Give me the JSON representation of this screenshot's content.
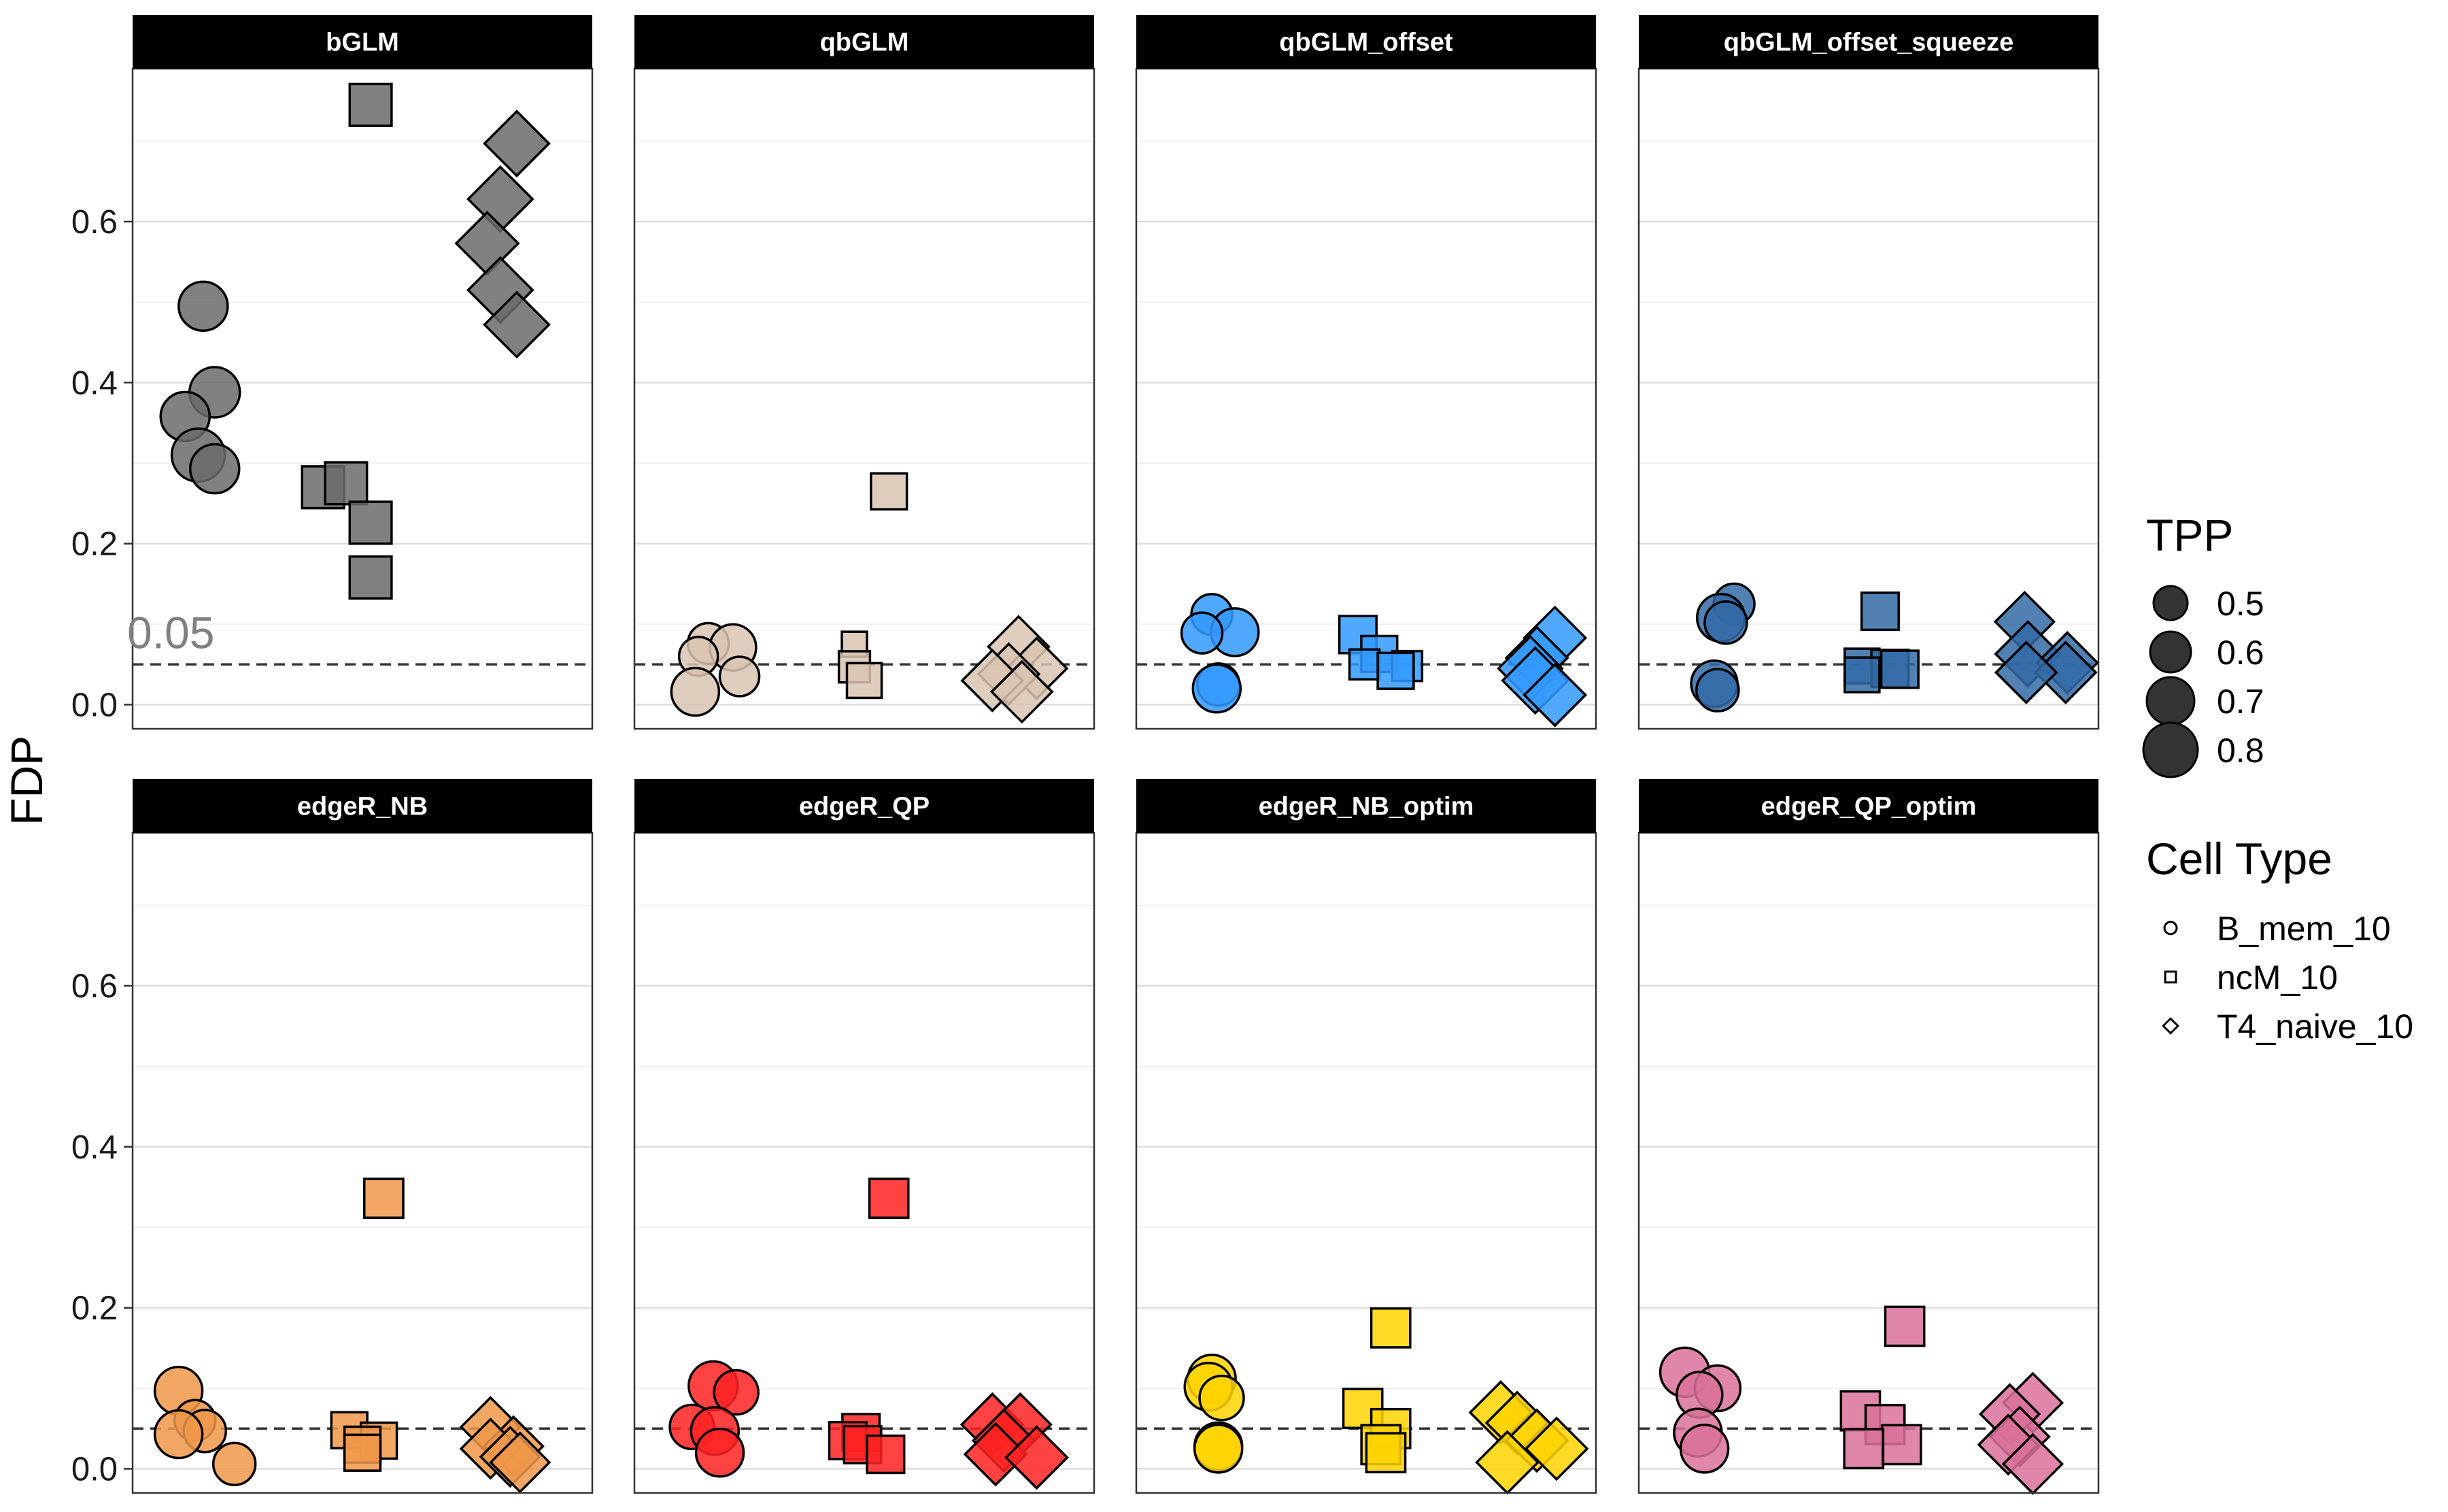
{
  "chart_data": {
    "type": "scatter",
    "ylabel": "FDP",
    "xlabel": "",
    "ylim": [
      -0.03,
      0.79
    ],
    "yticks": [
      "0.0",
      "0.2",
      "0.4",
      "0.6"
    ],
    "ytick_values": [
      0.0,
      0.2,
      0.4,
      0.6
    ],
    "reference_line": {
      "y": 0.05,
      "style": "dashed",
      "label": "0.05"
    },
    "grid": true,
    "legend_position": "right",
    "legend_size": {
      "title": "TPP",
      "values": [
        "0.5",
        "0.6",
        "0.7",
        "0.8"
      ]
    },
    "legend_shape": {
      "title": "Cell Type",
      "values": [
        "B_mem_10",
        "ncM_10",
        "T4_naive_10"
      ]
    },
    "shapes": {
      "B_mem_10": "circle",
      "ncM_10": "square",
      "T4_naive_10": "diamond"
    },
    "panels": [
      {
        "name": "bGLM",
        "color": "#6b6b6b",
        "points": [
          {
            "cell": "B_mem_10",
            "x": 1.03,
            "y": 0.495,
            "tpp": 0.72
          },
          {
            "cell": "B_mem_10",
            "x": 1.1,
            "y": 0.388,
            "tpp": 0.74
          },
          {
            "cell": "B_mem_10",
            "x": 0.92,
            "y": 0.358,
            "tpp": 0.72
          },
          {
            "cell": "B_mem_10",
            "x": 1.0,
            "y": 0.31,
            "tpp": 0.78
          },
          {
            "cell": "B_mem_10",
            "x": 1.1,
            "y": 0.293,
            "tpp": 0.72
          },
          {
            "cell": "ncM_10",
            "x": 2.05,
            "y": 0.745,
            "tpp": 0.7
          },
          {
            "cell": "ncM_10",
            "x": 1.76,
            "y": 0.27,
            "tpp": 0.7
          },
          {
            "cell": "ncM_10",
            "x": 1.9,
            "y": 0.275,
            "tpp": 0.7
          },
          {
            "cell": "ncM_10",
            "x": 2.05,
            "y": 0.226,
            "tpp": 0.7
          },
          {
            "cell": "ncM_10",
            "x": 2.05,
            "y": 0.158,
            "tpp": 0.7
          },
          {
            "cell": "T4_naive_10",
            "x": 2.94,
            "y": 0.697,
            "tpp": 0.79
          },
          {
            "cell": "T4_naive_10",
            "x": 2.84,
            "y": 0.628,
            "tpp": 0.79
          },
          {
            "cell": "T4_naive_10",
            "x": 2.76,
            "y": 0.573,
            "tpp": 0.76
          },
          {
            "cell": "T4_naive_10",
            "x": 2.84,
            "y": 0.515,
            "tpp": 0.79
          },
          {
            "cell": "T4_naive_10",
            "x": 2.94,
            "y": 0.472,
            "tpp": 0.79
          }
        ]
      },
      {
        "name": "qbGLM",
        "color": "#d9c4b1",
        "points": [
          {
            "cell": "B_mem_10",
            "x": 1.05,
            "y": 0.076,
            "tpp": 0.6
          },
          {
            "cell": "B_mem_10",
            "x": 1.2,
            "y": 0.071,
            "tpp": 0.68
          },
          {
            "cell": "B_mem_10",
            "x": 0.99,
            "y": 0.06,
            "tpp": 0.57
          },
          {
            "cell": "B_mem_10",
            "x": 1.24,
            "y": 0.035,
            "tpp": 0.58
          },
          {
            "cell": "B_mem_10",
            "x": 0.97,
            "y": 0.016,
            "tpp": 0.7
          },
          {
            "cell": "ncM_10",
            "x": 2.15,
            "y": 0.265,
            "tpp": 0.6
          },
          {
            "cell": "ncM_10",
            "x": 1.94,
            "y": 0.075,
            "tpp": 0.42
          },
          {
            "cell": "ncM_10",
            "x": 1.94,
            "y": 0.047,
            "tpp": 0.52
          },
          {
            "cell": "ncM_10",
            "x": 2.0,
            "y": 0.03,
            "tpp": 0.58
          },
          {
            "cell": "T4_naive_10",
            "x": 2.94,
            "y": 0.072,
            "tpp": 0.74
          },
          {
            "cell": "T4_naive_10",
            "x": 3.05,
            "y": 0.045,
            "tpp": 0.74
          },
          {
            "cell": "T4_naive_10",
            "x": 2.88,
            "y": 0.038,
            "tpp": 0.74
          },
          {
            "cell": "T4_naive_10",
            "x": 2.78,
            "y": 0.03,
            "tpp": 0.74
          },
          {
            "cell": "T4_naive_10",
            "x": 2.96,
            "y": 0.016,
            "tpp": 0.74
          }
        ]
      },
      {
        "name": "qbGLM_offset",
        "color": "#3399ff",
        "points": [
          {
            "cell": "B_mem_10",
            "x": 1.06,
            "y": 0.112,
            "tpp": 0.6
          },
          {
            "cell": "B_mem_10",
            "x": 1.2,
            "y": 0.09,
            "tpp": 0.7
          },
          {
            "cell": "B_mem_10",
            "x": 1.0,
            "y": 0.089,
            "tpp": 0.6
          },
          {
            "cell": "B_mem_10",
            "x": 1.1,
            "y": 0.025,
            "tpp": 0.62
          },
          {
            "cell": "B_mem_10",
            "x": 1.09,
            "y": 0.02,
            "tpp": 0.7
          },
          {
            "cell": "ncM_10",
            "x": 1.95,
            "y": 0.087,
            "tpp": 0.62
          },
          {
            "cell": "ncM_10",
            "x": 2.08,
            "y": 0.063,
            "tpp": 0.6
          },
          {
            "cell": "ncM_10",
            "x": 2.25,
            "y": 0.048,
            "tpp": 0.5
          },
          {
            "cell": "ncM_10",
            "x": 1.99,
            "y": 0.05,
            "tpp": 0.5
          },
          {
            "cell": "ncM_10",
            "x": 2.18,
            "y": 0.042,
            "tpp": 0.6
          },
          {
            "cell": "T4_naive_10",
            "x": 3.15,
            "y": 0.083,
            "tpp": 0.75
          },
          {
            "cell": "T4_naive_10",
            "x": 3.04,
            "y": 0.058,
            "tpp": 0.75
          },
          {
            "cell": "T4_naive_10",
            "x": 3.0,
            "y": 0.045,
            "tpp": 0.78
          },
          {
            "cell": "T4_naive_10",
            "x": 3.03,
            "y": 0.03,
            "tpp": 0.8
          },
          {
            "cell": "T4_naive_10",
            "x": 3.15,
            "y": 0.012,
            "tpp": 0.75
          }
        ]
      },
      {
        "name": "qbGLM_offset_squeeze",
        "color": "#336aa6",
        "points": [
          {
            "cell": "B_mem_10",
            "x": 1.18,
            "y": 0.125,
            "tpp": 0.6
          },
          {
            "cell": "B_mem_10",
            "x": 1.1,
            "y": 0.108,
            "tpp": 0.7
          },
          {
            "cell": "B_mem_10",
            "x": 1.13,
            "y": 0.102,
            "tpp": 0.62
          },
          {
            "cell": "B_mem_10",
            "x": 1.06,
            "y": 0.026,
            "tpp": 0.68
          },
          {
            "cell": "B_mem_10",
            "x": 1.08,
            "y": 0.018,
            "tpp": 0.62
          },
          {
            "cell": "ncM_10",
            "x": 2.07,
            "y": 0.116,
            "tpp": 0.62
          },
          {
            "cell": "ncM_10",
            "x": 1.96,
            "y": 0.048,
            "tpp": 0.58
          },
          {
            "cell": "ncM_10",
            "x": 2.13,
            "y": 0.045,
            "tpp": 0.62
          },
          {
            "cell": "ncM_10",
            "x": 2.19,
            "y": 0.044,
            "tpp": 0.62
          },
          {
            "cell": "ncM_10",
            "x": 1.96,
            "y": 0.037,
            "tpp": 0.58
          },
          {
            "cell": "T4_naive_10",
            "x": 2.95,
            "y": 0.103,
            "tpp": 0.72
          },
          {
            "cell": "T4_naive_10",
            "x": 2.97,
            "y": 0.063,
            "tpp": 0.79
          },
          {
            "cell": "T4_naive_10",
            "x": 3.21,
            "y": 0.052,
            "tpp": 0.74
          },
          {
            "cell": "T4_naive_10",
            "x": 3.2,
            "y": 0.04,
            "tpp": 0.74
          },
          {
            "cell": "T4_naive_10",
            "x": 2.96,
            "y": 0.04,
            "tpp": 0.74
          }
        ]
      },
      {
        "name": "edgeR_NB",
        "color": "#f0984a",
        "points": [
          {
            "cell": "B_mem_10",
            "x": 0.88,
            "y": 0.097,
            "tpp": 0.7
          },
          {
            "cell": "B_mem_10",
            "x": 0.98,
            "y": 0.06,
            "tpp": 0.6
          },
          {
            "cell": "B_mem_10",
            "x": 1.04,
            "y": 0.047,
            "tpp": 0.62
          },
          {
            "cell": "B_mem_10",
            "x": 0.88,
            "y": 0.043,
            "tpp": 0.7
          },
          {
            "cell": "B_mem_10",
            "x": 1.22,
            "y": 0.006,
            "tpp": 0.62
          },
          {
            "cell": "ncM_10",
            "x": 2.13,
            "y": 0.336,
            "tpp": 0.65
          },
          {
            "cell": "ncM_10",
            "x": 1.92,
            "y": 0.048,
            "tpp": 0.6
          },
          {
            "cell": "ncM_10",
            "x": 2.1,
            "y": 0.035,
            "tpp": 0.6
          },
          {
            "cell": "ncM_10",
            "x": 2.0,
            "y": 0.03,
            "tpp": 0.6
          },
          {
            "cell": "ncM_10",
            "x": 2.0,
            "y": 0.02,
            "tpp": 0.6
          },
          {
            "cell": "T4_naive_10",
            "x": 2.78,
            "y": 0.052,
            "tpp": 0.72
          },
          {
            "cell": "T4_naive_10",
            "x": 2.92,
            "y": 0.028,
            "tpp": 0.72
          },
          {
            "cell": "T4_naive_10",
            "x": 2.78,
            "y": 0.025,
            "tpp": 0.72
          },
          {
            "cell": "T4_naive_10",
            "x": 2.9,
            "y": 0.015,
            "tpp": 0.72
          },
          {
            "cell": "T4_naive_10",
            "x": 2.96,
            "y": 0.008,
            "tpp": 0.72
          }
        ]
      },
      {
        "name": "edgeR_QP",
        "color": "#ff2222",
        "points": [
          {
            "cell": "B_mem_10",
            "x": 1.08,
            "y": 0.103,
            "tpp": 0.72
          },
          {
            "cell": "B_mem_10",
            "x": 1.22,
            "y": 0.095,
            "tpp": 0.65
          },
          {
            "cell": "B_mem_10",
            "x": 0.95,
            "y": 0.052,
            "tpp": 0.65
          },
          {
            "cell": "B_mem_10",
            "x": 1.09,
            "y": 0.047,
            "tpp": 0.7
          },
          {
            "cell": "B_mem_10",
            "x": 1.12,
            "y": 0.02,
            "tpp": 0.7
          },
          {
            "cell": "ncM_10",
            "x": 2.15,
            "y": 0.336,
            "tpp": 0.65
          },
          {
            "cell": "ncM_10",
            "x": 1.98,
            "y": 0.045,
            "tpp": 0.62
          },
          {
            "cell": "ncM_10",
            "x": 1.9,
            "y": 0.035,
            "tpp": 0.62
          },
          {
            "cell": "ncM_10",
            "x": 1.99,
            "y": 0.03,
            "tpp": 0.62
          },
          {
            "cell": "ncM_10",
            "x": 2.13,
            "y": 0.018,
            "tpp": 0.62
          },
          {
            "cell": "T4_naive_10",
            "x": 2.78,
            "y": 0.055,
            "tpp": 0.75
          },
          {
            "cell": "T4_naive_10",
            "x": 2.95,
            "y": 0.055,
            "tpp": 0.75
          },
          {
            "cell": "T4_naive_10",
            "x": 2.85,
            "y": 0.035,
            "tpp": 0.75
          },
          {
            "cell": "T4_naive_10",
            "x": 2.8,
            "y": 0.018,
            "tpp": 0.75
          },
          {
            "cell": "T4_naive_10",
            "x": 3.05,
            "y": 0.014,
            "tpp": 0.75
          }
        ]
      },
      {
        "name": "edgeR_NB_optim",
        "color": "#ffd400",
        "points": [
          {
            "cell": "B_mem_10",
            "x": 1.06,
            "y": 0.112,
            "tpp": 0.7
          },
          {
            "cell": "B_mem_10",
            "x": 1.04,
            "y": 0.102,
            "tpp": 0.7
          },
          {
            "cell": "B_mem_10",
            "x": 1.12,
            "y": 0.088,
            "tpp": 0.65
          },
          {
            "cell": "B_mem_10",
            "x": 1.1,
            "y": 0.028,
            "tpp": 0.7
          },
          {
            "cell": "B_mem_10",
            "x": 1.1,
            "y": 0.025,
            "tpp": 0.7
          },
          {
            "cell": "ncM_10",
            "x": 2.15,
            "y": 0.175,
            "tpp": 0.65
          },
          {
            "cell": "ncM_10",
            "x": 1.98,
            "y": 0.075,
            "tpp": 0.65
          },
          {
            "cell": "ncM_10",
            "x": 2.15,
            "y": 0.05,
            "tpp": 0.65
          },
          {
            "cell": "ncM_10",
            "x": 2.09,
            "y": 0.03,
            "tpp": 0.65
          },
          {
            "cell": "ncM_10",
            "x": 2.12,
            "y": 0.02,
            "tpp": 0.65
          },
          {
            "cell": "T4_naive_10",
            "x": 2.82,
            "y": 0.07,
            "tpp": 0.75
          },
          {
            "cell": "T4_naive_10",
            "x": 2.92,
            "y": 0.057,
            "tpp": 0.75
          },
          {
            "cell": "T4_naive_10",
            "x": 3.04,
            "y": 0.035,
            "tpp": 0.75
          },
          {
            "cell": "T4_naive_10",
            "x": 3.16,
            "y": 0.025,
            "tpp": 0.75
          },
          {
            "cell": "T4_naive_10",
            "x": 2.86,
            "y": 0.008,
            "tpp": 0.75
          }
        ]
      },
      {
        "name": "edgeR_QP_optim",
        "color": "#d9719b",
        "points": [
          {
            "cell": "B_mem_10",
            "x": 0.88,
            "y": 0.12,
            "tpp": 0.72
          },
          {
            "cell": "B_mem_10",
            "x": 1.08,
            "y": 0.1,
            "tpp": 0.67
          },
          {
            "cell": "B_mem_10",
            "x": 0.97,
            "y": 0.092,
            "tpp": 0.67
          },
          {
            "cell": "B_mem_10",
            "x": 0.96,
            "y": 0.045,
            "tpp": 0.7
          },
          {
            "cell": "B_mem_10",
            "x": 1.0,
            "y": 0.025,
            "tpp": 0.7
          },
          {
            "cell": "ncM_10",
            "x": 2.22,
            "y": 0.177,
            "tpp": 0.65
          },
          {
            "cell": "ncM_10",
            "x": 1.95,
            "y": 0.072,
            "tpp": 0.65
          },
          {
            "cell": "ncM_10",
            "x": 2.1,
            "y": 0.055,
            "tpp": 0.65
          },
          {
            "cell": "ncM_10",
            "x": 2.2,
            "y": 0.03,
            "tpp": 0.65
          },
          {
            "cell": "ncM_10",
            "x": 1.97,
            "y": 0.025,
            "tpp": 0.65
          },
          {
            "cell": "T4_naive_10",
            "x": 3.0,
            "y": 0.082,
            "tpp": 0.72
          },
          {
            "cell": "T4_naive_10",
            "x": 2.86,
            "y": 0.068,
            "tpp": 0.72
          },
          {
            "cell": "T4_naive_10",
            "x": 2.92,
            "y": 0.04,
            "tpp": 0.72
          },
          {
            "cell": "T4_naive_10",
            "x": 2.85,
            "y": 0.03,
            "tpp": 0.72
          },
          {
            "cell": "T4_naive_10",
            "x": 3.0,
            "y": 0.006,
            "tpp": 0.72
          }
        ]
      }
    ]
  }
}
